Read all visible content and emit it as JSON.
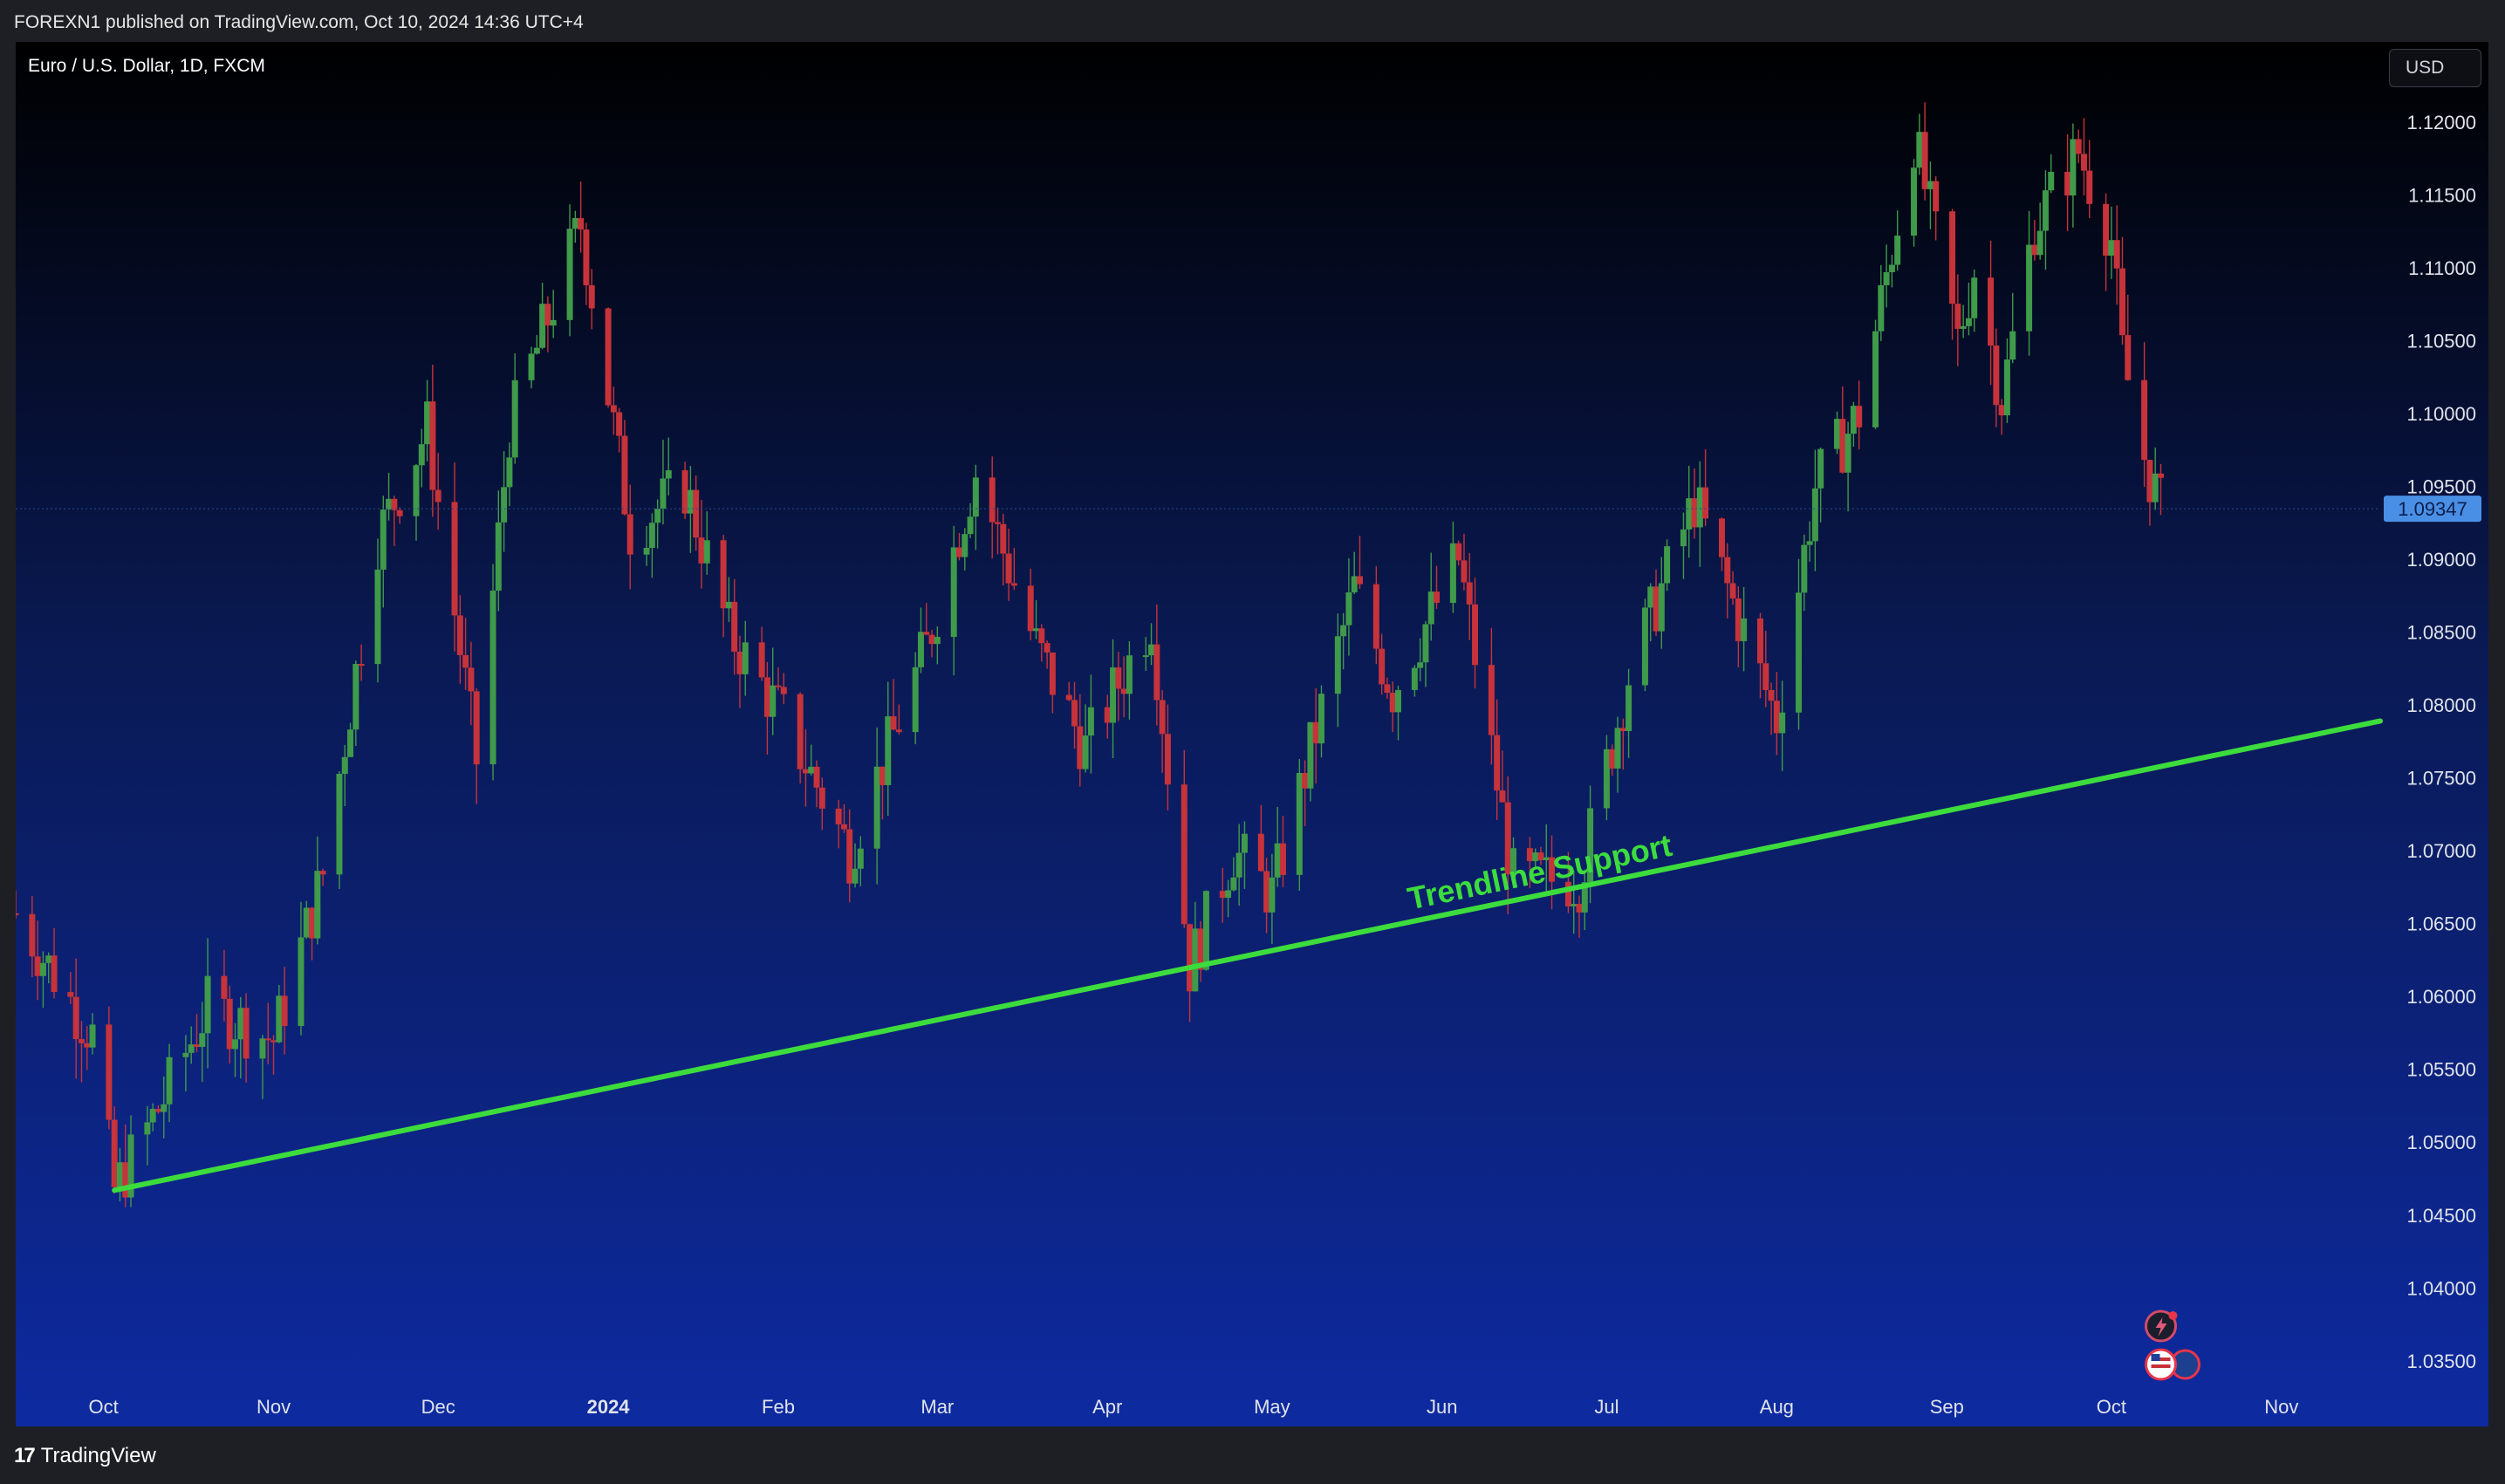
{
  "header": {
    "published_text": "FOREXN1 published on TradingView.com, Oct 10, 2024 14:36 UTC+4"
  },
  "symbol": {
    "title": "Euro / U.S. Dollar, 1D, FXCM"
  },
  "currency_button": "USD",
  "footer": {
    "brand": "TradingView",
    "logo_icon": "tradingview-logo-icon"
  },
  "chart_data": {
    "type": "candlestick",
    "currency": "USD",
    "current_price": 1.09347,
    "current_price_label": "1.09347",
    "y_ticks": [
      "1.12000",
      "1.11500",
      "1.11000",
      "1.10500",
      "1.10000",
      "1.09500",
      "1.09000",
      "1.08500",
      "1.08000",
      "1.07500",
      "1.07000",
      "1.06500",
      "1.06000",
      "1.05500",
      "1.05000",
      "1.04500",
      "1.04000",
      "1.03500"
    ],
    "ylim": [
      1.0305,
      1.1255
    ],
    "x_ticks": [
      {
        "label": "Oct",
        "date": "2023-10-01"
      },
      {
        "label": "Nov",
        "date": "2023-11-01"
      },
      {
        "label": "Dec",
        "date": "2023-12-01"
      },
      {
        "label": "2024",
        "date": "2024-01-01",
        "bold": true
      },
      {
        "label": "Feb",
        "date": "2024-02-01"
      },
      {
        "label": "Mar",
        "date": "2024-03-01"
      },
      {
        "label": "Apr",
        "date": "2024-04-01"
      },
      {
        "label": "May",
        "date": "2024-05-01"
      },
      {
        "label": "Jun",
        "date": "2024-06-01"
      },
      {
        "label": "Jul",
        "date": "2024-07-01"
      },
      {
        "label": "Aug",
        "date": "2024-08-01"
      },
      {
        "label": "Sep",
        "date": "2024-09-01"
      },
      {
        "label": "Oct",
        "date": "2024-10-01"
      },
      {
        "label": "Nov",
        "date": "2024-11-01"
      }
    ],
    "xlim": [
      "2023-09-15",
      "2024-11-19"
    ],
    "key_closes": [
      [
        "2023-09-15",
        1.0657
      ],
      [
        "2023-09-29",
        1.0573
      ],
      [
        "2023-10-03",
        1.0467
      ],
      [
        "2023-10-12",
        1.053
      ],
      [
        "2023-10-20",
        1.0593
      ],
      [
        "2023-11-01",
        1.057
      ],
      [
        "2023-11-10",
        1.0684
      ],
      [
        "2023-11-20",
        1.0915
      ],
      [
        "2023-11-29",
        1.099
      ],
      [
        "2023-12-08",
        1.0762
      ],
      [
        "2023-12-14",
        1.099
      ],
      [
        "2023-12-27",
        1.113
      ],
      [
        "2024-01-05",
        1.092
      ],
      [
        "2024-01-15",
        1.095
      ],
      [
        "2024-01-23",
        1.085
      ],
      [
        "2024-02-02",
        1.079
      ],
      [
        "2024-02-14",
        1.07
      ],
      [
        "2024-02-28",
        1.084
      ],
      [
        "2024-03-08",
        1.096
      ],
      [
        "2024-03-19",
        1.084
      ],
      [
        "2024-03-28",
        1.077
      ],
      [
        "2024-04-09",
        1.086
      ],
      [
        "2024-04-16",
        1.062
      ],
      [
        "2024-04-24",
        1.07
      ],
      [
        "2024-05-01",
        1.067
      ],
      [
        "2024-05-16",
        1.088
      ],
      [
        "2024-05-23",
        1.081
      ],
      [
        "2024-06-04",
        1.09
      ],
      [
        "2024-06-14",
        1.068
      ],
      [
        "2024-06-26",
        1.068
      ],
      [
        "2024-07-05",
        1.082
      ],
      [
        "2024-07-17",
        1.094
      ],
      [
        "2024-07-26",
        1.085
      ],
      [
        "2024-08-01",
        1.079
      ],
      [
        "2024-08-08",
        1.095
      ],
      [
        "2024-08-16",
        1.1
      ],
      [
        "2024-08-26",
        1.119
      ],
      [
        "2024-09-03",
        1.105
      ],
      [
        "2024-09-06",
        1.11
      ],
      [
        "2024-09-11",
        1.101
      ],
      [
        "2024-09-17",
        1.113
      ],
      [
        "2024-09-25",
        1.118
      ],
      [
        "2024-10-01",
        1.112
      ],
      [
        "2024-10-03",
        1.104
      ],
      [
        "2024-10-07",
        1.097
      ],
      [
        "2024-10-10",
        1.0935
      ]
    ],
    "annotations": [
      {
        "type": "trendline",
        "label": "Trendline Support",
        "color": "#3ddc3d",
        "from": {
          "date": "2023-10-03",
          "price": 1.0467
        },
        "to": {
          "date": "2024-11-19",
          "price": 1.0789
        }
      }
    ],
    "up_color": "#3f9a4a",
    "down_color": "#c7333a",
    "background_top": "#000000",
    "background_bottom": "#0d2aa0"
  },
  "event_icons": [
    "lightning-event-icon",
    "us-flag-event-icon",
    "earnings-event-icon"
  ]
}
